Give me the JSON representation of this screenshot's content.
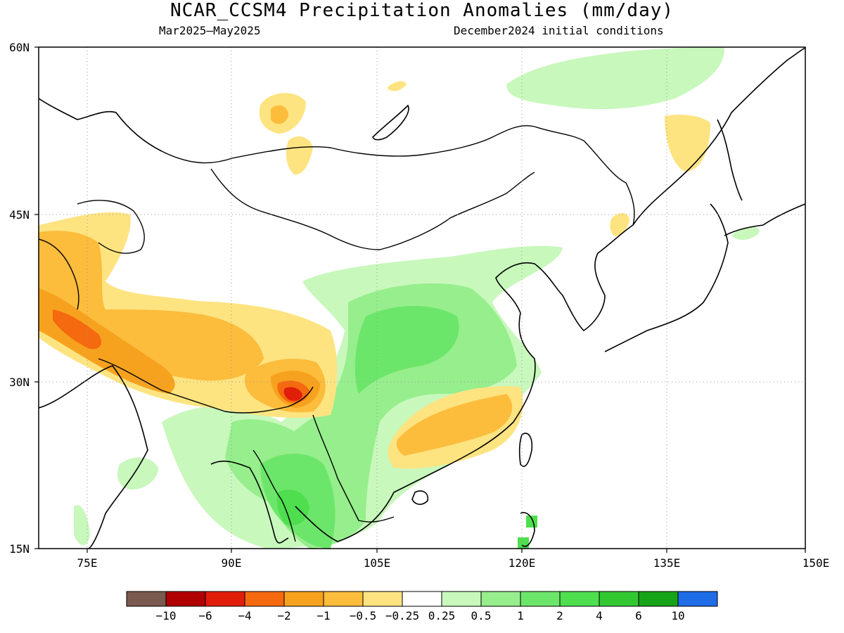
{
  "title": "NCAR_CCSM4 Precipitation Anomalies (mm/day)",
  "period": "Mar2025–May2025",
  "init": "December2024 initial conditions",
  "axes": {
    "x_ticks": [
      "75E",
      "90E",
      "105E",
      "120E",
      "135E",
      "150E"
    ],
    "y_ticks": [
      "60N",
      "45N",
      "30N",
      "15N"
    ]
  },
  "colorbar": {
    "colors": [
      "#7a5a4e",
      "#b00000",
      "#e01e0a",
      "#f5690f",
      "#f7a21e",
      "#fcbc3c",
      "#fde481",
      "#ffffff",
      "#c8f8bc",
      "#96ee8c",
      "#6ce66a",
      "#4ede4e",
      "#32c832",
      "#17a317",
      "#1e6ce6"
    ],
    "labels": [
      "−10",
      "−6",
      "−4",
      "−2",
      "−1",
      "−0.5",
      "−0.25",
      "0.25",
      "0.5",
      "1",
      "2",
      "4",
      "6",
      "10"
    ]
  }
}
